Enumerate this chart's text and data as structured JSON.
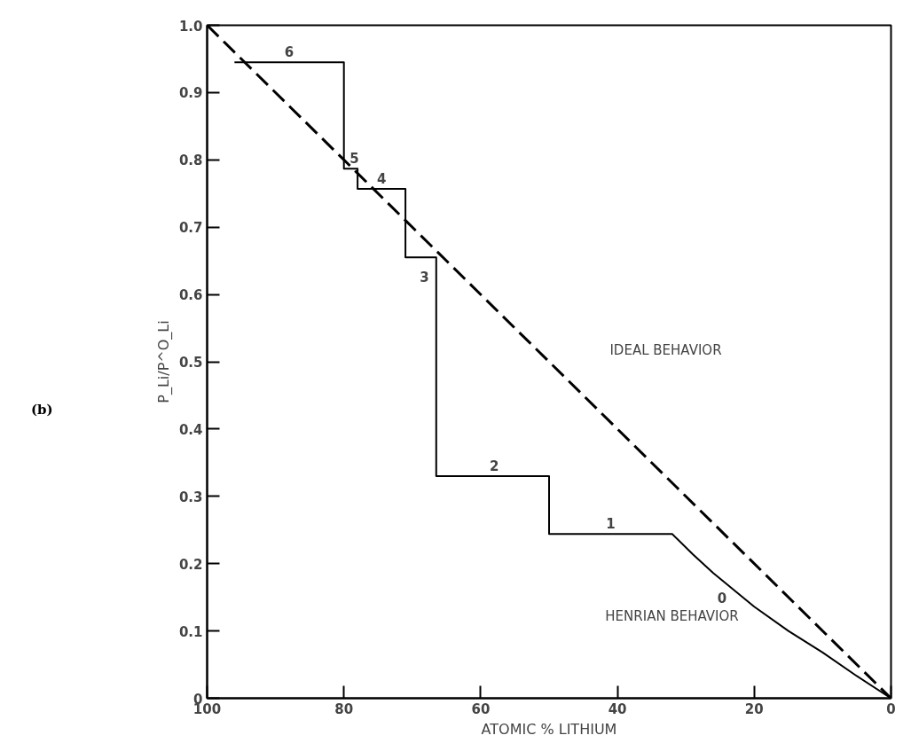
{
  "chart_data": {
    "type": "line",
    "xlabel": "ATOMIC % LITHIUM",
    "ylabel": "P_Li/P^O_Li",
    "xlim": [
      100,
      0
    ],
    "ylim": [
      0,
      1.0
    ],
    "xticks": [
      100,
      80,
      60,
      40,
      20,
      0
    ],
    "yticks": [
      0,
      0.1,
      0.2,
      0.3,
      0.4,
      0.5,
      0.6,
      0.7,
      0.8,
      0.9,
      {
        "value": 1,
        "label": "1.0"
      }
    ],
    "grid": false,
    "marker": "none",
    "series": [
      {
        "color": "#000000",
        "line_style": "dashed",
        "x": [
          100,
          0
        ],
        "values": [
          1.0,
          0
        ]
      },
      {
        "color": "#000000",
        "line_style": "solid",
        "x": [
          96,
          80,
          80,
          78,
          78,
          71,
          71,
          66.5,
          66.5,
          50,
          50,
          32,
          29,
          26,
          20,
          15,
          10,
          5,
          0
        ],
        "values": [
          0.945,
          0.945,
          0.787,
          0.787,
          0.757,
          0.757,
          0.655,
          0.655,
          0.33,
          0.33,
          0.244,
          0.244,
          0.214,
          0.186,
          0.136,
          0.1,
          0.068,
          0.033,
          0
        ]
      }
    ],
    "annotations": [
      {
        "text": "6",
        "x": 88,
        "y": 0.945
      },
      {
        "text": "5",
        "x": 79,
        "y": 0.787
      },
      {
        "text": "4",
        "x": 74.5,
        "y": 0.757
      },
      {
        "text": "3",
        "x": 68.75,
        "y": 0.655
      },
      {
        "text": "2",
        "x": 58,
        "y": 0.33
      },
      {
        "text": "1",
        "x": 41,
        "y": 0.244
      },
      {
        "text": "0",
        "x": 26,
        "y": 0.186
      },
      "IDEAL BEHAVIOR",
      "HENRIAN BEHAVIOR",
      "(b)"
    ]
  }
}
